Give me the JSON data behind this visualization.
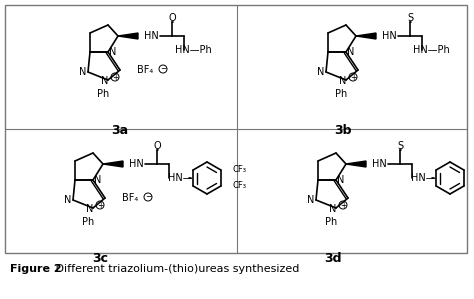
{
  "title_bold": "Figure 2",
  "title_normal": " Different triazolium-(thio)ureas synthesized",
  "bg_color": "#ffffff",
  "fig_width": 4.74,
  "fig_height": 2.99,
  "labels": [
    "3a",
    "3b",
    "3c",
    "3d"
  ],
  "font_size_caption": 8.0,
  "font_size_label": 9.0,
  "font_size_atom": 7.0,
  "font_size_small": 6.0
}
